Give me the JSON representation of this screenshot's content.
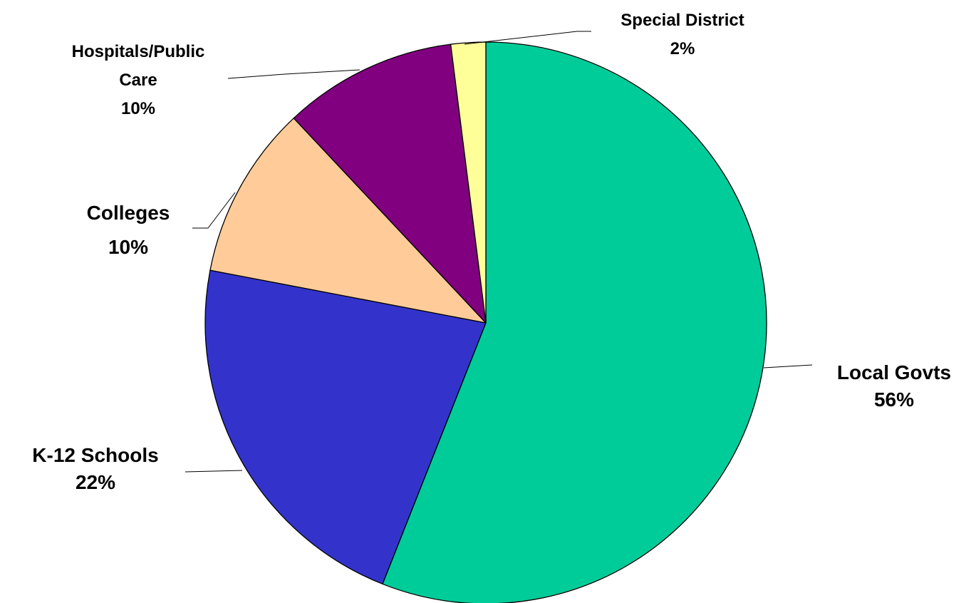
{
  "chart_data": {
    "type": "pie",
    "start_angle_deg": 0,
    "direction": "clockwise",
    "slices": [
      {
        "label_lines": [
          "Local Govts"
        ],
        "percent_label": "56%",
        "value": 56,
        "color": "#00CC99"
      },
      {
        "label_lines": [
          "K-12 Schools"
        ],
        "percent_label": "22%",
        "value": 22,
        "color": "#3333CC"
      },
      {
        "label_lines": [
          "Colleges"
        ],
        "percent_label": "10%",
        "value": 10,
        "color": "#FFCC99"
      },
      {
        "label_lines": [
          "Hospitals/Public",
          "Care"
        ],
        "percent_label": "10%",
        "value": 10,
        "color": "#800080"
      },
      {
        "label_lines": [
          "Special District"
        ],
        "percent_label": "2%",
        "value": 2,
        "color": "#FFFF99"
      }
    ]
  }
}
